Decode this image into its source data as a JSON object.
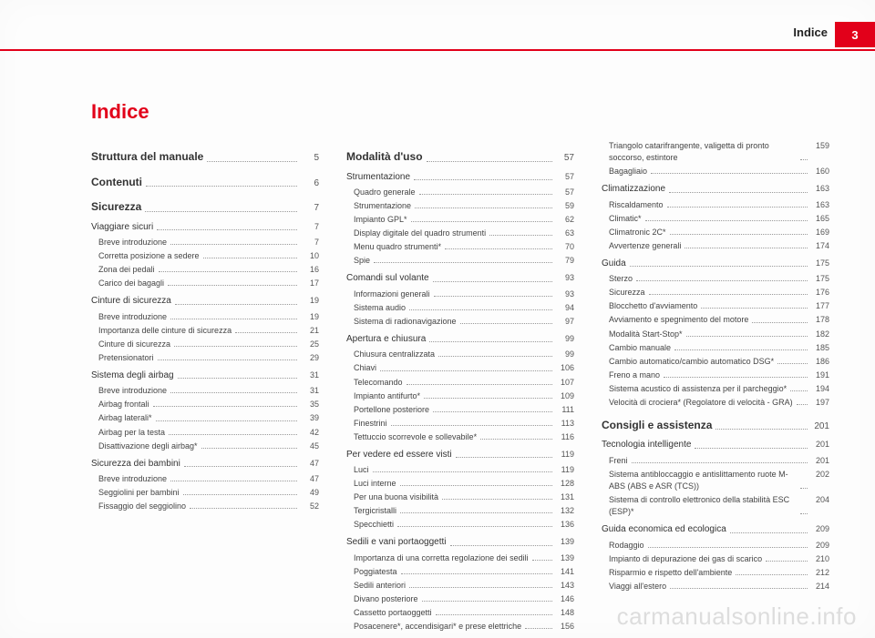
{
  "header": {
    "label": "Indice",
    "page_number": "3",
    "accent_color": "#e2001a"
  },
  "title": "Indice",
  "watermark": "carmanualsonline.info",
  "columns": [
    [
      {
        "label": "Struttura del manuale",
        "page": "5",
        "type": "section"
      },
      {
        "label": "Contenuti",
        "page": "6",
        "type": "section"
      },
      {
        "label": "Sicurezza",
        "page": "7",
        "type": "section"
      },
      {
        "label": "Viaggiare sicuri",
        "page": "7",
        "type": "chapter"
      },
      {
        "label": "Breve introduzione",
        "page": "7",
        "type": "sub"
      },
      {
        "label": "Corretta posizione a sedere",
        "page": "10",
        "type": "sub"
      },
      {
        "label": "Zona dei pedali",
        "page": "16",
        "type": "sub"
      },
      {
        "label": "Carico dei bagagli",
        "page": "17",
        "type": "sub"
      },
      {
        "label": "Cinture di sicurezza",
        "page": "19",
        "type": "chapter"
      },
      {
        "label": "Breve introduzione",
        "page": "19",
        "type": "sub"
      },
      {
        "label": "Importanza delle cinture di sicurezza",
        "page": "21",
        "type": "sub"
      },
      {
        "label": "Cinture di sicurezza",
        "page": "25",
        "type": "sub"
      },
      {
        "label": "Pretensionatori",
        "page": "29",
        "type": "sub"
      },
      {
        "label": "Sistema degli airbag",
        "page": "31",
        "type": "chapter"
      },
      {
        "label": "Breve introduzione",
        "page": "31",
        "type": "sub"
      },
      {
        "label": "Airbag frontali",
        "page": "35",
        "type": "sub"
      },
      {
        "label": "Airbag laterali*",
        "page": "39",
        "type": "sub"
      },
      {
        "label": "Airbag per la testa",
        "page": "42",
        "type": "sub"
      },
      {
        "label": "Disattivazione degli airbag*",
        "page": "45",
        "type": "sub"
      },
      {
        "label": "Sicurezza dei bambini",
        "page": "47",
        "type": "chapter"
      },
      {
        "label": "Breve introduzione",
        "page": "47",
        "type": "sub"
      },
      {
        "label": "Seggiolini per bambini",
        "page": "49",
        "type": "sub"
      },
      {
        "label": "Fissaggio del seggiolino",
        "page": "52",
        "type": "sub"
      }
    ],
    [
      {
        "label": "Modalità d'uso",
        "page": "57",
        "type": "section"
      },
      {
        "label": "Strumentazione",
        "page": "57",
        "type": "chapter"
      },
      {
        "label": "Quadro generale",
        "page": "57",
        "type": "sub"
      },
      {
        "label": "Strumentazione",
        "page": "59",
        "type": "sub"
      },
      {
        "label": "Impianto GPL*",
        "page": "62",
        "type": "sub"
      },
      {
        "label": "Display digitale del quadro strumenti",
        "page": "63",
        "type": "sub"
      },
      {
        "label": "Menu quadro strumenti*",
        "page": "70",
        "type": "sub"
      },
      {
        "label": "Spie",
        "page": "79",
        "type": "sub"
      },
      {
        "label": "Comandi sul volante",
        "page": "93",
        "type": "chapter"
      },
      {
        "label": "Informazioni generali",
        "page": "93",
        "type": "sub"
      },
      {
        "label": "Sistema audio",
        "page": "94",
        "type": "sub"
      },
      {
        "label": "Sistema di radionavigazione",
        "page": "97",
        "type": "sub"
      },
      {
        "label": "Apertura e chiusura",
        "page": "99",
        "type": "chapter"
      },
      {
        "label": "Chiusura centralizzata",
        "page": "99",
        "type": "sub"
      },
      {
        "label": "Chiavi",
        "page": "106",
        "type": "sub"
      },
      {
        "label": "Telecomando",
        "page": "107",
        "type": "sub"
      },
      {
        "label": "Impianto antifurto*",
        "page": "109",
        "type": "sub"
      },
      {
        "label": "Portellone posteriore",
        "page": "111",
        "type": "sub"
      },
      {
        "label": "Finestrini",
        "page": "113",
        "type": "sub"
      },
      {
        "label": "Tettuccio scorrevole e sollevabile*",
        "page": "116",
        "type": "sub"
      },
      {
        "label": "Per vedere ed essere visti",
        "page": "119",
        "type": "chapter"
      },
      {
        "label": "Luci",
        "page": "119",
        "type": "sub"
      },
      {
        "label": "Luci interne",
        "page": "128",
        "type": "sub"
      },
      {
        "label": "Per una buona visibilità",
        "page": "131",
        "type": "sub"
      },
      {
        "label": "Tergicristalli",
        "page": "132",
        "type": "sub"
      },
      {
        "label": "Specchietti",
        "page": "136",
        "type": "sub"
      },
      {
        "label": "Sedili e vani portaoggetti",
        "page": "139",
        "type": "chapter"
      },
      {
        "label": "Importanza di una corretta regolazione dei sedili",
        "page": "139",
        "type": "sub"
      },
      {
        "label": "Poggiatesta",
        "page": "141",
        "type": "sub"
      },
      {
        "label": "Sedili anteriori",
        "page": "143",
        "type": "sub"
      },
      {
        "label": "Divano posteriore",
        "page": "146",
        "type": "sub"
      },
      {
        "label": "Cassetto portaoggetti",
        "page": "148",
        "type": "sub"
      },
      {
        "label": "Posacenere*, accendisigari* e prese elettriche",
        "page": "156",
        "type": "sub"
      }
    ],
    [
      {
        "label": "Triangolo catarifrangente, valigetta di pronto soccorso, estintore",
        "page": "159",
        "type": "sub"
      },
      {
        "label": "Bagagliaio",
        "page": "160",
        "type": "sub"
      },
      {
        "label": "Climatizzazione",
        "page": "163",
        "type": "chapter"
      },
      {
        "label": "Riscaldamento",
        "page": "163",
        "type": "sub"
      },
      {
        "label": "Climatic*",
        "page": "165",
        "type": "sub"
      },
      {
        "label": "Climatronic 2C*",
        "page": "169",
        "type": "sub"
      },
      {
        "label": "Avvertenze generali",
        "page": "174",
        "type": "sub"
      },
      {
        "label": "Guida",
        "page": "175",
        "type": "chapter"
      },
      {
        "label": "Sterzo",
        "page": "175",
        "type": "sub"
      },
      {
        "label": "Sicurezza",
        "page": "176",
        "type": "sub"
      },
      {
        "label": "Blocchetto d'avviamento",
        "page": "177",
        "type": "sub"
      },
      {
        "label": "Avviamento e spegnimento del motore",
        "page": "178",
        "type": "sub"
      },
      {
        "label": "Modalità Start-Stop*",
        "page": "182",
        "type": "sub"
      },
      {
        "label": "Cambio manuale",
        "page": "185",
        "type": "sub"
      },
      {
        "label": "Cambio automatico/cambio automatico DSG*",
        "page": "186",
        "type": "sub"
      },
      {
        "label": "Freno a mano",
        "page": "191",
        "type": "sub"
      },
      {
        "label": "Sistema acustico di assistenza per il parcheggio*",
        "page": "194",
        "type": "sub"
      },
      {
        "label": "Velocità di crociera* (Regolatore di velocità - GRA)",
        "page": "197",
        "type": "sub"
      },
      {
        "label": "Consigli e assistenza",
        "page": "201",
        "type": "section"
      },
      {
        "label": "Tecnologia intelligente",
        "page": "201",
        "type": "chapter"
      },
      {
        "label": "Freni",
        "page": "201",
        "type": "sub"
      },
      {
        "label": "Sistema antibloccaggio e antislittamento ruote M-ABS (ABS e ASR (TCS))",
        "page": "202",
        "type": "sub"
      },
      {
        "label": "Sistema di controllo elettronico della stabilità ESC (ESP)*",
        "page": "204",
        "type": "sub"
      },
      {
        "label": "Guida economica ed ecologica",
        "page": "209",
        "type": "chapter"
      },
      {
        "label": "Rodaggio",
        "page": "209",
        "type": "sub"
      },
      {
        "label": "Impianto di depurazione dei gas di scarico",
        "page": "210",
        "type": "sub"
      },
      {
        "label": "Risparmio e rispetto dell'ambiente",
        "page": "212",
        "type": "sub"
      },
      {
        "label": "Viaggi all'estero",
        "page": "214",
        "type": "sub"
      }
    ]
  ]
}
